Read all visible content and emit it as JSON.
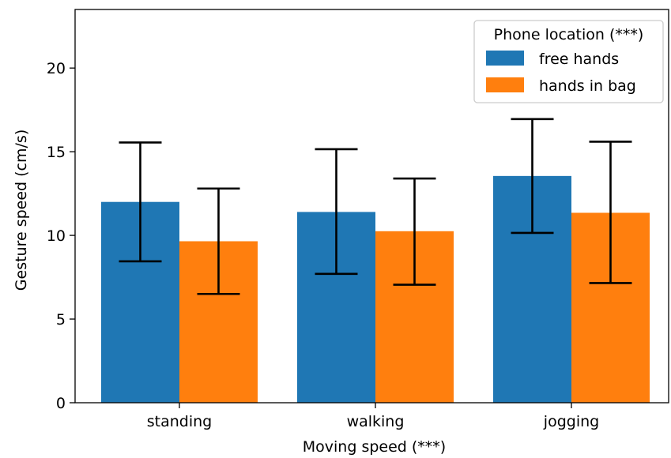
{
  "chart_data": {
    "type": "bar",
    "categories": [
      "standing",
      "walking",
      "jogging"
    ],
    "series": [
      {
        "name": "free hands",
        "color": "#1f77b4",
        "values": [
          12.0,
          11.4,
          13.55
        ],
        "error_low": [
          8.45,
          7.7,
          10.15
        ],
        "error_high": [
          15.55,
          15.15,
          16.95
        ]
      },
      {
        "name": "hands in bag",
        "color": "#ff7f0e",
        "values": [
          9.65,
          10.25,
          11.35
        ],
        "error_low": [
          6.5,
          7.05,
          7.15
        ],
        "error_high": [
          12.8,
          13.4,
          15.6
        ]
      }
    ],
    "xlabel": "Moving speed (***)",
    "ylabel": "Gesture speed (cm/s)",
    "ylim": [
      0,
      23.5
    ],
    "yticks": [
      0,
      5,
      10,
      15,
      20
    ],
    "legend": {
      "title": "Phone location (***)",
      "placement": "top-right"
    },
    "grid": false
  }
}
